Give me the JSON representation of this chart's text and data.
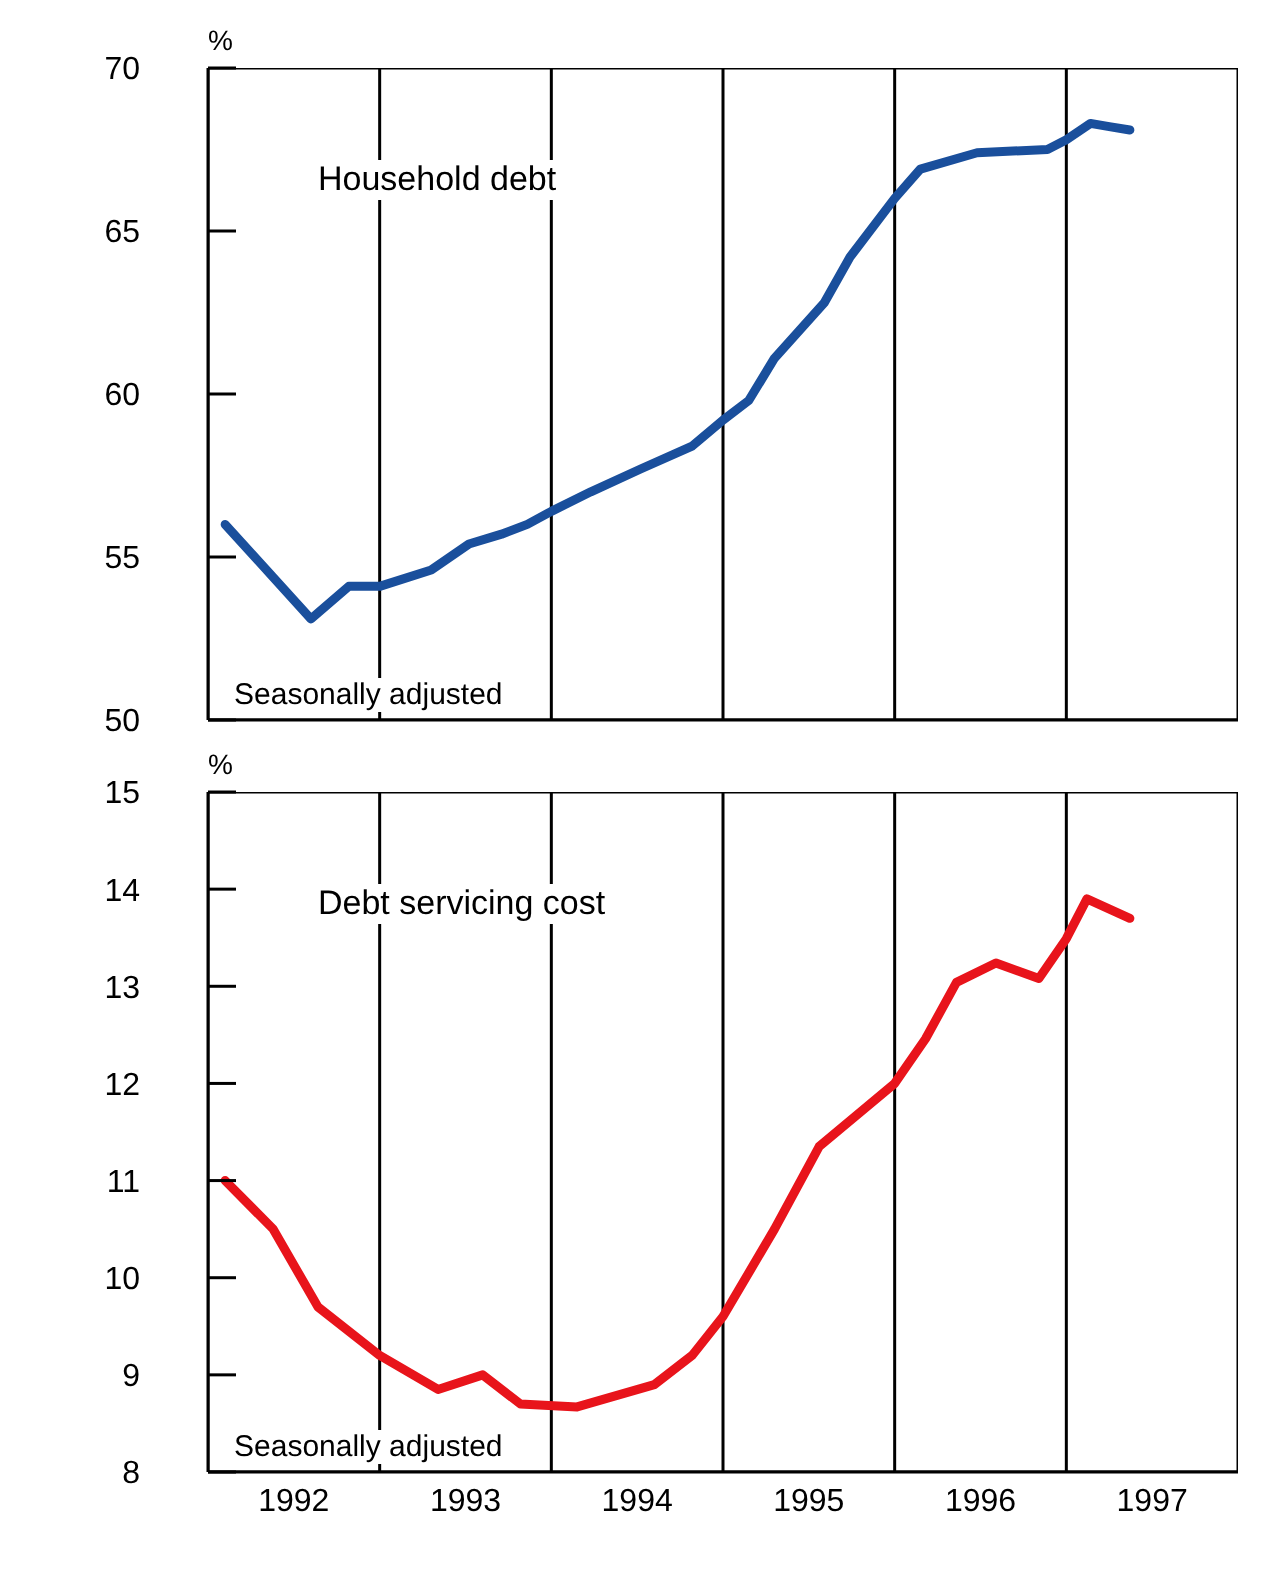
{
  "chart_data": [
    {
      "type": "line",
      "ylabel": "%",
      "annotations": [
        "Household debt",
        "Seasonally adjusted"
      ],
      "xlim": [
        1992,
        1998
      ],
      "ylim": [
        50,
        70
      ],
      "yticks": [
        50,
        55,
        60,
        65,
        70
      ],
      "tick_labels": "y",
      "ref_lines": [
        {
          "axis": "x",
          "value": 1993,
          "color": "#000000"
        },
        {
          "axis": "x",
          "value": 1994,
          "color": "#000000"
        },
        {
          "axis": "x",
          "value": 1995,
          "color": "#000000"
        },
        {
          "axis": "x",
          "value": 1996,
          "color": "#000000"
        },
        {
          "axis": "x",
          "value": 1997,
          "color": "#000000"
        }
      ],
      "series": [
        {
          "color": "#1a4f9c",
          "x": [
            1992.1,
            1992.6,
            1992.82,
            1993.0,
            1993.3,
            1993.52,
            1993.71,
            1993.86,
            1994.0,
            1994.23,
            1994.52,
            1994.82,
            1995.0,
            1995.15,
            1995.3,
            1995.59,
            1995.74,
            1996.0,
            1996.15,
            1996.48,
            1996.89,
            1997.0,
            1997.14,
            1997.25,
            1997.37
          ],
          "values": [
            56.0,
            53.1,
            54.1,
            54.1,
            54.6,
            55.4,
            55.7,
            56.0,
            56.4,
            57.0,
            57.7,
            58.4,
            59.2,
            59.8,
            61.1,
            62.8,
            64.2,
            66.0,
            66.9,
            67.4,
            67.5,
            67.8,
            68.3,
            68.2,
            68.1
          ]
        }
      ]
    },
    {
      "type": "line",
      "ylabel": "%",
      "annotations": [
        "Debt servicing cost",
        "Seasonally adjusted"
      ],
      "xlim": [
        1992,
        1998
      ],
      "xticks": [
        {
          "value": 1992.5,
          "label": "1992"
        },
        {
          "value": 1993.5,
          "label": "1993"
        },
        {
          "value": 1994.5,
          "label": "1994"
        },
        {
          "value": 1995.5,
          "label": "1995"
        },
        {
          "value": 1996.5,
          "label": "1996"
        },
        {
          "value": 1997.5,
          "label": "1997"
        }
      ],
      "ylim": [
        8,
        15
      ],
      "yticks": [
        8,
        9,
        10,
        11,
        12,
        13,
        14,
        15
      ],
      "ref_lines": [
        {
          "axis": "x",
          "value": 1993,
          "color": "#000000"
        },
        {
          "axis": "x",
          "value": 1994,
          "color": "#000000"
        },
        {
          "axis": "x",
          "value": 1995,
          "color": "#000000"
        },
        {
          "axis": "x",
          "value": 1996,
          "color": "#000000"
        },
        {
          "axis": "x",
          "value": 1997,
          "color": "#000000"
        }
      ],
      "series": [
        {
          "color": "#e8141b",
          "x": [
            1992.1,
            1992.38,
            1992.64,
            1993.0,
            1993.34,
            1993.6,
            1993.82,
            1994.15,
            1994.6,
            1994.82,
            1995.0,
            1995.3,
            1995.56,
            1996.0,
            1996.18,
            1996.36,
            1996.59,
            1996.84,
            1997.0,
            1997.12,
            1997.37
          ],
          "values": [
            11.0,
            10.5,
            9.7,
            9.2,
            8.85,
            9.0,
            8.7,
            8.67,
            8.9,
            9.2,
            9.6,
            10.5,
            11.35,
            12.0,
            12.46,
            13.04,
            13.24,
            13.08,
            13.49,
            13.9,
            13.7
          ]
        }
      ]
    }
  ]
}
